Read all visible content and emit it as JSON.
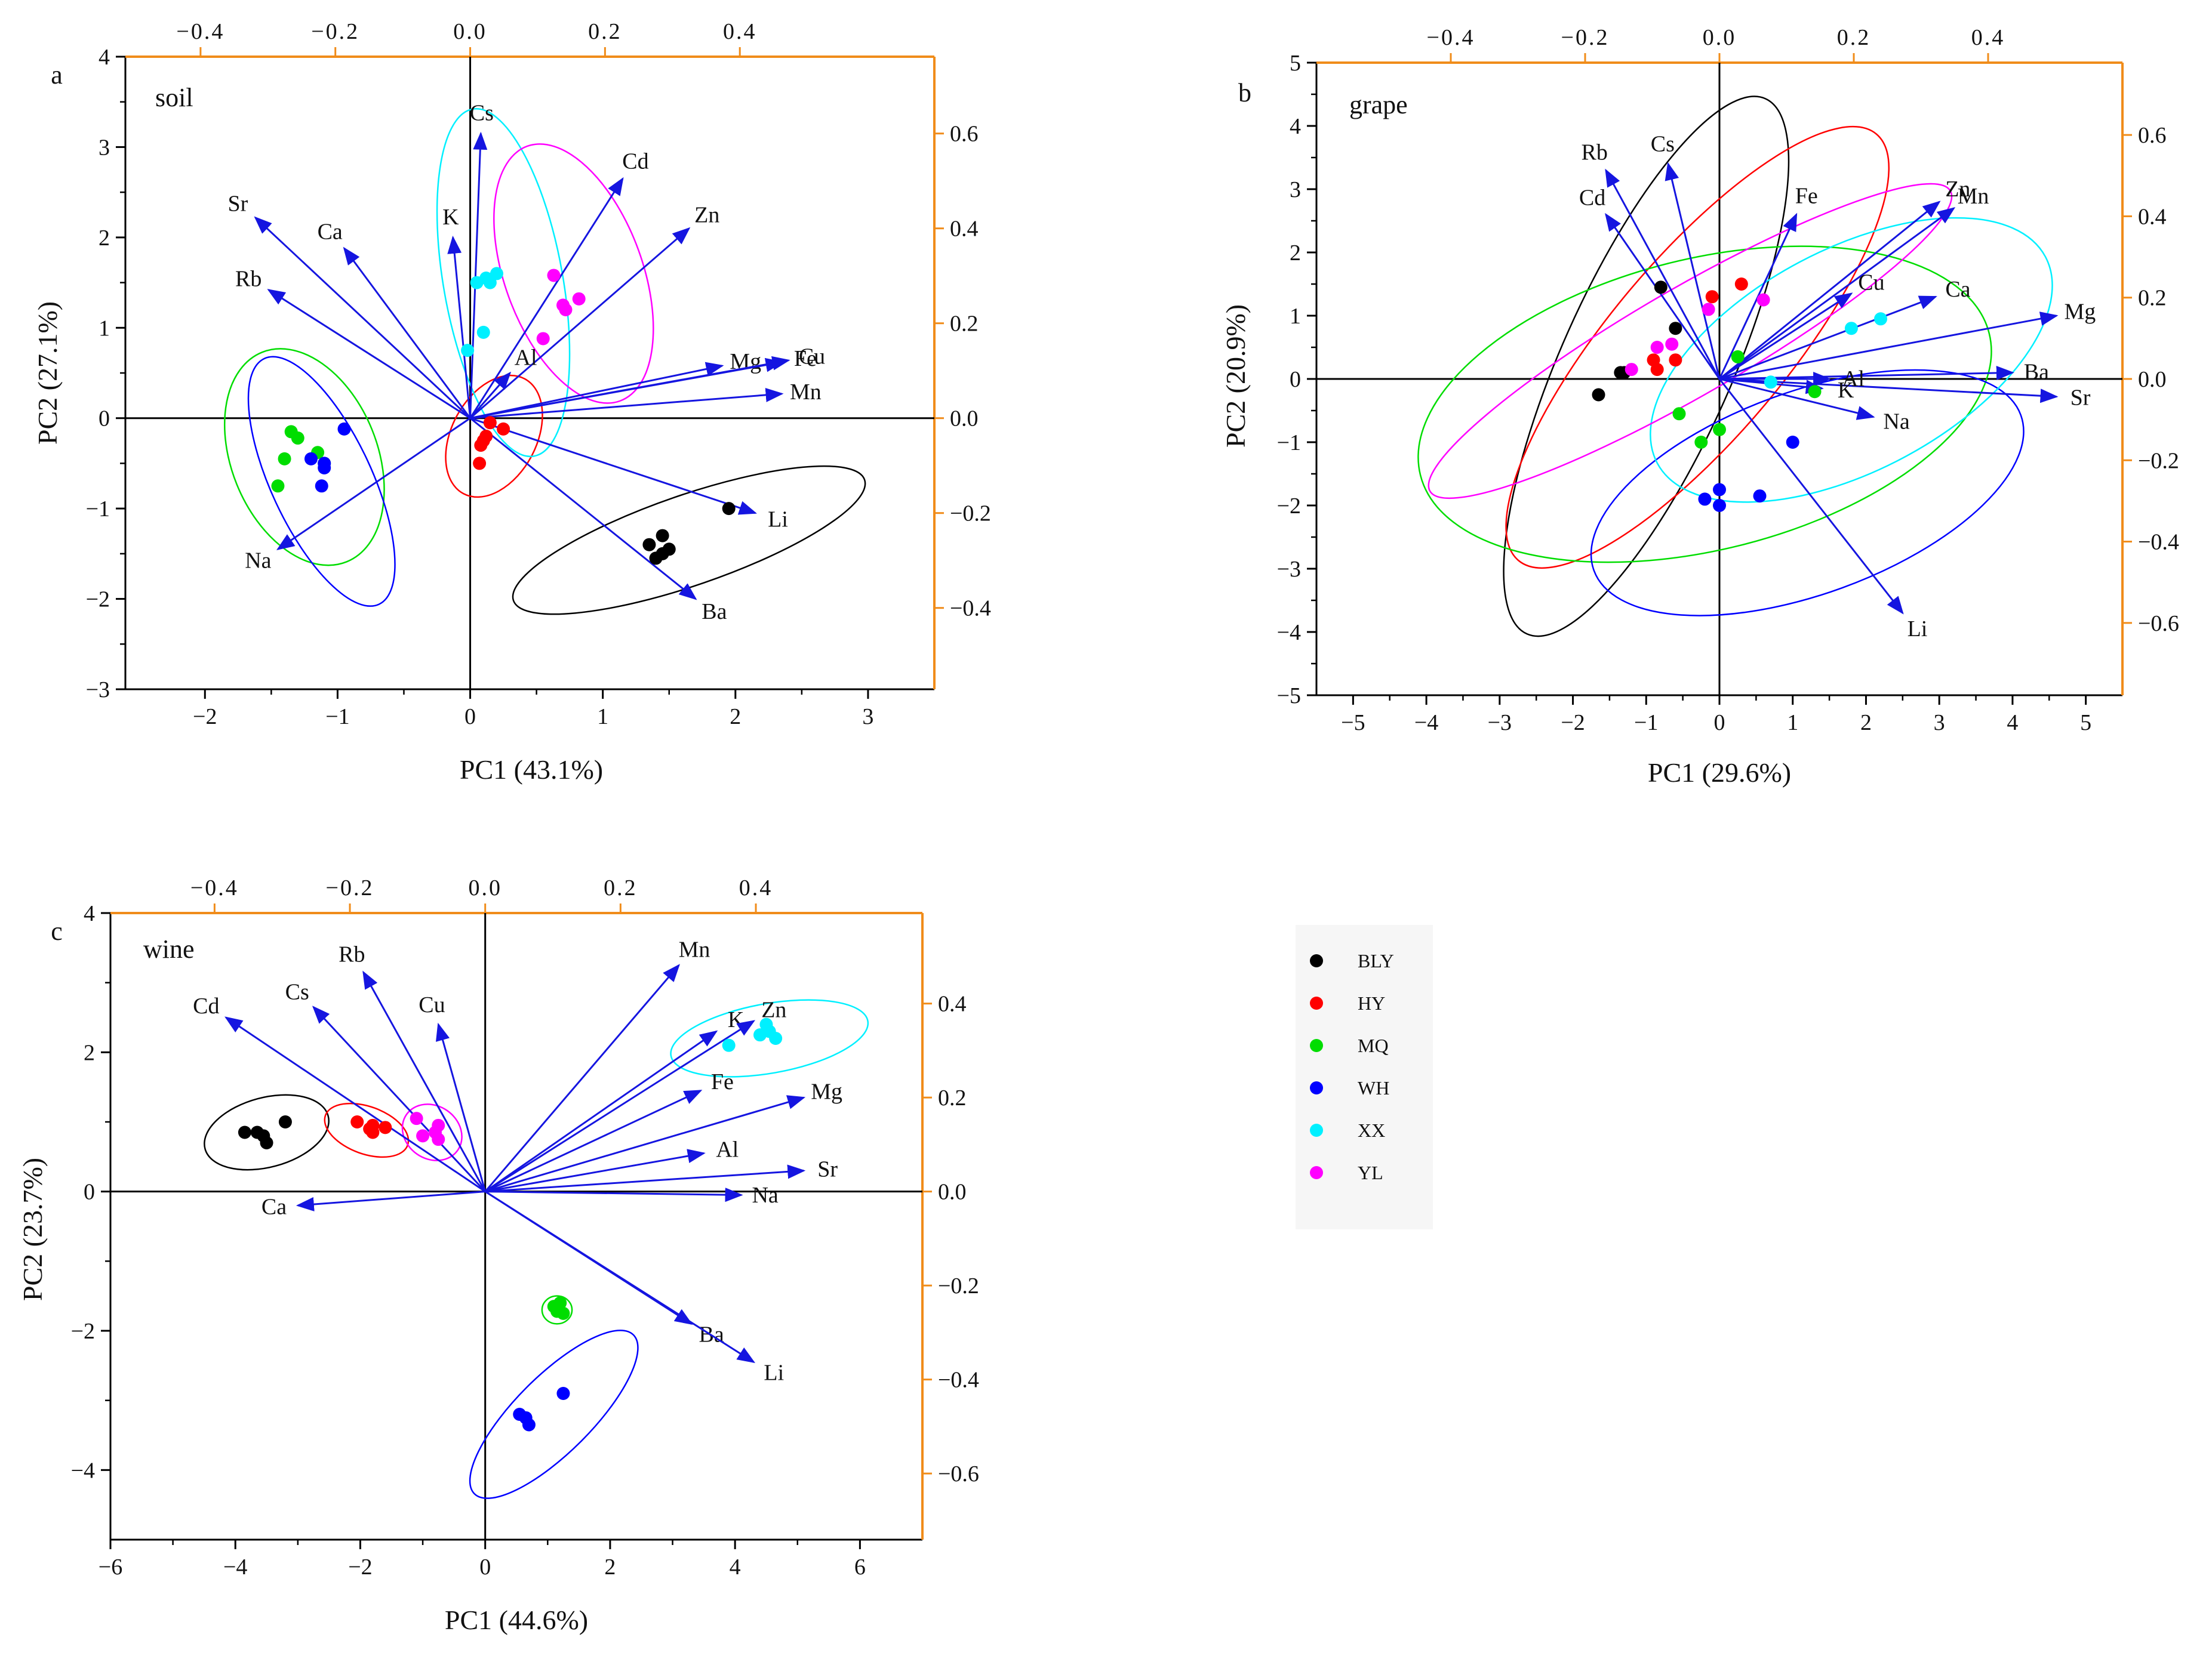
{
  "chart_data": [
    {
      "type": "scatter",
      "panel_letter": "a",
      "inner_label": "soil",
      "xlabel": "PC1 (43.1%)",
      "ylabel": "PC2 (27.1%)",
      "xlim": [
        -2.6,
        3.5
      ],
      "ylim": [
        -3,
        4
      ],
      "xticks": [
        -2,
        -1,
        0,
        1,
        2,
        3
      ],
      "yticks": [
        -3,
        -2,
        -1,
        0,
        1,
        2,
        3,
        4
      ],
      "top_ticks": [
        -0.4,
        -0.2,
        0.0,
        0.2,
        0.4
      ],
      "right_ticks": [
        -0.4,
        -0.2,
        0.0,
        0.2,
        0.4,
        0.6
      ],
      "loadings": [
        {
          "name": "Cs",
          "x": 0.08,
          "y": 3.15
        },
        {
          "name": "Cd",
          "x": 1.15,
          "y": 2.65
        },
        {
          "name": "Zn",
          "x": 1.65,
          "y": 2.1
        },
        {
          "name": "K",
          "x": -0.13,
          "y": 2.0
        },
        {
          "name": "Sr",
          "x": -1.62,
          "y": 2.22
        },
        {
          "name": "Ca",
          "x": -0.95,
          "y": 1.88
        },
        {
          "name": "Rb",
          "x": -1.52,
          "y": 1.42
        },
        {
          "name": "Mg",
          "x": 1.9,
          "y": 0.58
        },
        {
          "name": "Fe",
          "x": 2.35,
          "y": 0.62
        },
        {
          "name": "Cu",
          "x": 2.4,
          "y": 0.64
        },
        {
          "name": "Mn",
          "x": 2.35,
          "y": 0.27
        },
        {
          "name": "Al",
          "x": 0.3,
          "y": 0.5
        },
        {
          "name": "Li",
          "x": 2.15,
          "y": -1.05
        },
        {
          "name": "Na",
          "x": -1.45,
          "y": -1.45
        },
        {
          "name": "Ba",
          "x": 1.7,
          "y": -2.0
        }
      ],
      "groups": [
        {
          "name": "BLY",
          "points": [
            [
              1.35,
              -1.4
            ],
            [
              1.45,
              -1.3
            ],
            [
              1.4,
              -1.55
            ],
            [
              1.5,
              -1.45
            ],
            [
              1.45,
              -1.5
            ],
            [
              1.95,
              -1.0
            ]
          ],
          "ellipse": {
            "cx": 1.65,
            "cy": -1.35,
            "rx": 1.4,
            "ry": 0.5,
            "angle": 19
          }
        },
        {
          "name": "HY",
          "points": [
            [
              0.08,
              -0.3
            ],
            [
              0.1,
              -0.25
            ],
            [
              0.25,
              -0.12
            ],
            [
              0.15,
              -0.05
            ],
            [
              0.07,
              -0.5
            ],
            [
              0.12,
              -0.2
            ]
          ],
          "ellipse": {
            "cx": 0.18,
            "cy": -0.2,
            "rx": 0.32,
            "ry": 0.72,
            "angle": -28
          }
        },
        {
          "name": "MQ",
          "points": [
            [
              -1.35,
              -0.15
            ],
            [
              -1.3,
              -0.22
            ],
            [
              -1.4,
              -0.45
            ],
            [
              -1.15,
              -0.38
            ],
            [
              -1.45,
              -0.75
            ],
            [
              -1.1,
              -0.5
            ]
          ],
          "ellipse": {
            "cx": -1.25,
            "cy": -0.43,
            "rx": 0.55,
            "ry": 1.25,
            "angle": 22
          }
        },
        {
          "name": "WH",
          "points": [
            [
              -0.95,
              -0.12
            ],
            [
              -1.2,
              -0.45
            ],
            [
              -1.1,
              -0.5
            ],
            [
              -1.1,
              -0.55
            ],
            [
              -1.12,
              -0.75
            ]
          ],
          "ellipse": {
            "cx": -1.12,
            "cy": -0.7,
            "rx": 0.38,
            "ry": 1.5,
            "angle": 25
          }
        },
        {
          "name": "XX",
          "points": [
            [
              0.05,
              1.5
            ],
            [
              0.15,
              1.5
            ],
            [
              0.2,
              1.6
            ],
            [
              0.1,
              0.95
            ],
            [
              -0.02,
              0.75
            ],
            [
              0.12,
              1.55
            ]
          ],
          "ellipse": {
            "cx": 0.25,
            "cy": 1.5,
            "rx": 0.45,
            "ry": 1.95,
            "angle": 10
          }
        },
        {
          "name": "YL",
          "points": [
            [
              0.63,
              1.58
            ],
            [
              0.7,
              1.25
            ],
            [
              0.72,
              1.2
            ],
            [
              0.82,
              1.32
            ],
            [
              0.55,
              0.88
            ]
          ],
          "ellipse": {
            "cx": 0.78,
            "cy": 1.6,
            "rx": 0.52,
            "ry": 1.5,
            "angle": 20
          }
        }
      ]
    },
    {
      "type": "scatter",
      "panel_letter": "b",
      "inner_label": "grape",
      "xlabel": "PC1 (29.6%)",
      "ylabel": "PC2 (20.9%)",
      "xlim": [
        -5.5,
        5.5
      ],
      "ylim": [
        -5,
        5
      ],
      "xticks": [
        -5,
        -4,
        -3,
        -2,
        -1,
        0,
        1,
        2,
        3,
        4,
        5
      ],
      "yticks": [
        -5,
        -4,
        -3,
        -2,
        -1,
        0,
        1,
        2,
        3,
        4,
        5
      ],
      "top_ticks": [
        -0.4,
        -0.2,
        0.0,
        0.2,
        0.4
      ],
      "right_ticks": [
        -0.6,
        -0.4,
        -0.2,
        0.0,
        0.2,
        0.4,
        0.6
      ],
      "loadings": [
        {
          "name": "Rb",
          "x": -1.55,
          "y": 3.3
        },
        {
          "name": "Cs",
          "x": -0.7,
          "y": 3.4
        },
        {
          "name": "Cd",
          "x": -1.55,
          "y": 2.6
        },
        {
          "name": "Fe",
          "x": 1.05,
          "y": 2.6
        },
        {
          "name": "Zn",
          "x": 3.0,
          "y": 2.8
        },
        {
          "name": "Mn",
          "x": 3.2,
          "y": 2.7
        },
        {
          "name": "Cu",
          "x": 1.8,
          "y": 1.35
        },
        {
          "name": "Ca",
          "x": 2.95,
          "y": 1.3
        },
        {
          "name": "Mg",
          "x": 4.6,
          "y": 1.0
        },
        {
          "name": "Ba",
          "x": 4.0,
          "y": 0.1
        },
        {
          "name": "Sr",
          "x": 4.6,
          "y": -0.28
        },
        {
          "name": "Al",
          "x": 1.5,
          "y": 0.0
        },
        {
          "name": "K",
          "x": 1.4,
          "y": -0.15
        },
        {
          "name": "Na",
          "x": 2.1,
          "y": -0.6
        },
        {
          "name": "Li",
          "x": 2.5,
          "y": -3.7
        }
      ],
      "groups": [
        {
          "name": "BLY",
          "points": [
            [
              -1.65,
              -0.25
            ],
            [
              -1.35,
              0.1
            ],
            [
              -1.3,
              0.1
            ],
            [
              -0.8,
              1.45
            ],
            [
              -0.6,
              0.8
            ]
          ],
          "ellipse": {
            "cx": -1.0,
            "cy": 0.2,
            "rx": 4.0,
            "ry": 1.35,
            "angle": 66
          }
        },
        {
          "name": "HY",
          "points": [
            [
              -0.9,
              0.3
            ],
            [
              -0.6,
              0.3
            ],
            [
              -0.85,
              0.15
            ],
            [
              -0.1,
              1.3
            ],
            [
              0.3,
              1.5
            ]
          ],
          "ellipse": {
            "cx": -0.3,
            "cy": 0.5,
            "rx": 3.8,
            "ry": 1.4,
            "angle": 50
          }
        },
        {
          "name": "MQ",
          "points": [
            [
              -0.55,
              -0.55
            ],
            [
              -0.25,
              -1.0
            ],
            [
              0.0,
              -0.8
            ],
            [
              0.25,
              0.35
            ],
            [
              1.3,
              -0.2
            ]
          ],
          "ellipse": {
            "cx": -0.2,
            "cy": -0.4,
            "rx": 4.0,
            "ry": 2.3,
            "angle": 14
          }
        },
        {
          "name": "WH",
          "points": [
            [
              -0.2,
              -1.9
            ],
            [
              0.0,
              -2.0
            ],
            [
              0.0,
              -1.75
            ],
            [
              0.55,
              -1.85
            ],
            [
              1.0,
              -1.0
            ]
          ],
          "ellipse": {
            "cx": 1.2,
            "cy": -1.8,
            "rx": 3.1,
            "ry": 1.6,
            "angle": 20
          }
        },
        {
          "name": "XX",
          "points": [
            [
              1.8,
              0.8
            ],
            [
              2.2,
              0.95
            ],
            [
              0.7,
              -0.05
            ]
          ],
          "ellipse": {
            "cx": 1.8,
            "cy": 0.3,
            "rx": 3.0,
            "ry": 1.75,
            "angle": 28
          }
        },
        {
          "name": "YL",
          "points": [
            [
              -1.2,
              0.15
            ],
            [
              -0.85,
              0.5
            ],
            [
              -0.65,
              0.55
            ],
            [
              -0.15,
              1.1
            ],
            [
              0.6,
              1.25
            ]
          ],
          "ellipse": {
            "cx": -0.4,
            "cy": 0.6,
            "rx": 4.1,
            "ry": 0.85,
            "angle": 30
          }
        }
      ]
    },
    {
      "type": "scatter",
      "panel_letter": "c",
      "inner_label": "wine",
      "xlabel": "PC1 (44.6%)",
      "ylabel": "PC2 (23.7%)",
      "xlim": [
        -6,
        7
      ],
      "ylim": [
        -5,
        4
      ],
      "xticks": [
        -6,
        -4,
        -2,
        0,
        2,
        4,
        6
      ],
      "yticks": [
        -4,
        -2,
        0,
        2,
        4
      ],
      "top_ticks": [
        -0.4,
        -0.2,
        0.0,
        0.2,
        0.4
      ],
      "right_ticks": [
        -0.6,
        -0.4,
        -0.2,
        0.0,
        0.2,
        0.4
      ],
      "loadings": [
        {
          "name": "Cd",
          "x": -4.15,
          "y": 2.5
        },
        {
          "name": "Cs",
          "x": -2.75,
          "y": 2.65
        },
        {
          "name": "Rb",
          "x": -1.95,
          "y": 3.15
        },
        {
          "name": "Cu",
          "x": -0.75,
          "y": 2.4
        },
        {
          "name": "Ca",
          "x": -3.0,
          "y": -0.2
        },
        {
          "name": "Mn",
          "x": 3.1,
          "y": 3.25
        },
        {
          "name": "K",
          "x": 3.7,
          "y": 2.3
        },
        {
          "name": "Zn",
          "x": 4.3,
          "y": 2.45
        },
        {
          "name": "Fe",
          "x": 3.45,
          "y": 1.45
        },
        {
          "name": "Mg",
          "x": 5.1,
          "y": 1.35
        },
        {
          "name": "Al",
          "x": 3.5,
          "y": 0.55
        },
        {
          "name": "Sr",
          "x": 5.1,
          "y": 0.3
        },
        {
          "name": "Na",
          "x": 4.1,
          "y": -0.05
        },
        {
          "name": "Ba",
          "x": 3.3,
          "y": -1.9
        },
        {
          "name": "Li",
          "x": 4.3,
          "y": -2.45
        }
      ],
      "groups": [
        {
          "name": "BLY",
          "points": [
            [
              -3.85,
              0.85
            ],
            [
              -3.65,
              0.85
            ],
            [
              -3.55,
              0.8
            ],
            [
              -3.5,
              0.7
            ],
            [
              -3.2,
              1.0
            ]
          ],
          "ellipse": {
            "cx": -3.5,
            "cy": 0.85,
            "rx": 1.02,
            "ry": 0.5,
            "angle": 15
          }
        },
        {
          "name": "HY",
          "points": [
            [
              -2.05,
              1.0
            ],
            [
              -1.85,
              0.9
            ],
            [
              -1.8,
              0.95
            ],
            [
              -1.6,
              0.92
            ],
            [
              -1.8,
              0.85
            ]
          ],
          "ellipse": {
            "cx": -1.9,
            "cy": 0.88,
            "rx": 0.7,
            "ry": 0.34,
            "angle": -20
          }
        },
        {
          "name": "MQ",
          "points": [
            [
              1.1,
              -1.65
            ],
            [
              1.15,
              -1.72
            ],
            [
              1.2,
              -1.6
            ],
            [
              1.25,
              -1.75
            ]
          ],
          "ellipse": {
            "cx": 1.15,
            "cy": -1.7,
            "rx": 0.24,
            "ry": 0.2,
            "angle": 0
          }
        },
        {
          "name": "WH",
          "points": [
            [
              0.55,
              -3.2
            ],
            [
              0.65,
              -3.25
            ],
            [
              0.7,
              -3.35
            ],
            [
              1.25,
              -2.9
            ]
          ],
          "ellipse": {
            "cx": 1.1,
            "cy": -3.2,
            "rx": 1.8,
            "ry": 0.55,
            "angle": 45
          }
        },
        {
          "name": "XX",
          "points": [
            [
              3.9,
              2.1
            ],
            [
              4.4,
              2.25
            ],
            [
              4.55,
              2.3
            ],
            [
              4.65,
              2.2
            ],
            [
              4.5,
              2.4
            ]
          ],
          "ellipse": {
            "cx": 4.55,
            "cy": 2.2,
            "rx": 1.6,
            "ry": 0.5,
            "angle": 10
          }
        },
        {
          "name": "YL",
          "points": [
            [
              -1.1,
              1.05
            ],
            [
              -1.0,
              0.8
            ],
            [
              -0.8,
              0.85
            ],
            [
              -0.75,
              0.75
            ],
            [
              -0.75,
              0.95
            ]
          ],
          "ellipse": {
            "cx": -0.85,
            "cy": 0.85,
            "rx": 0.5,
            "ry": 0.38,
            "angle": -35
          }
        }
      ]
    }
  ],
  "legend": [
    {
      "name": "BLY",
      "color": "#000000"
    },
    {
      "name": "HY",
      "color": "#ff0000"
    },
    {
      "name": "MQ",
      "color": "#00dd00"
    },
    {
      "name": "WH",
      "color": "#0000ff"
    },
    {
      "name": "XX",
      "color": "#00f0ff"
    },
    {
      "name": "YL",
      "color": "#ff00ff"
    }
  ],
  "colors": {
    "arrow": "#1515e0",
    "secondary_axis": "#f08c1a",
    "axis": "#000000"
  }
}
